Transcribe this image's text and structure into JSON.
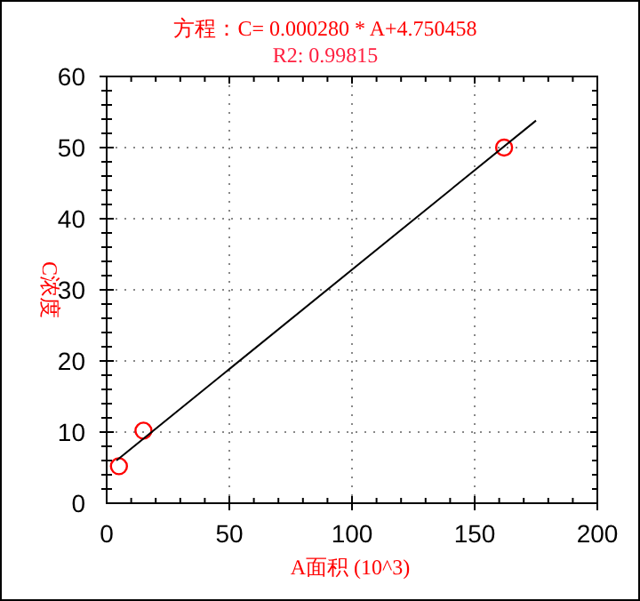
{
  "chart_data": {
    "type": "scatter",
    "title": "方程：C= 0.000280 * A+4.750458",
    "subtitle": "R2: 0.99815",
    "xlabel": "A面积 (10^3)",
    "ylabel": "C浓度",
    "series": [
      {
        "type": "scatter",
        "color": "#ff0000",
        "marker": "circle",
        "x": [
          5,
          15,
          162
        ],
        "values": [
          5.2,
          10.2,
          50
        ]
      },
      {
        "type": "line",
        "color": "#000000",
        "marker": "none",
        "line_style": "solid",
        "x": [
          4,
          175
        ],
        "values": [
          6.0,
          53.8
        ]
      }
    ],
    "xlim": [
      0,
      200
    ],
    "xticks": [
      0,
      50,
      100,
      150,
      200
    ],
    "ylim": [
      0,
      60
    ],
    "yticks": [
      0,
      10,
      20,
      30,
      40,
      50,
      60
    ],
    "grid": true
  }
}
